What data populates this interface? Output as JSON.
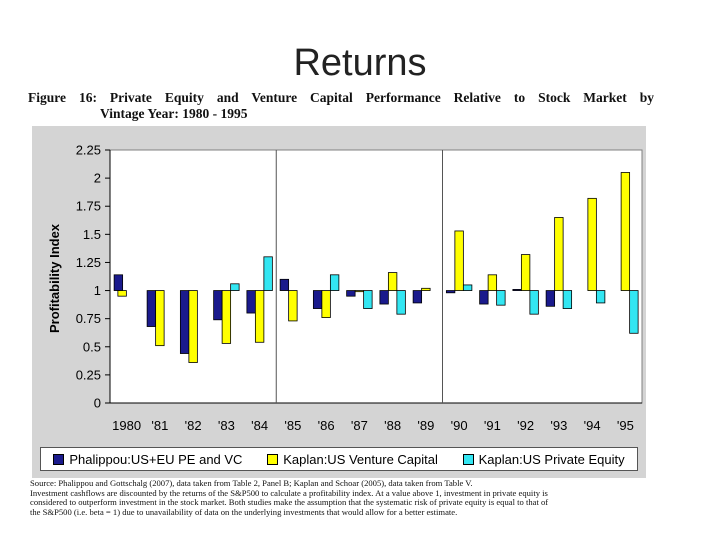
{
  "slide": {
    "title": "Returns"
  },
  "figure": {
    "caption_line1": "Figure 16: Private Equity and Venture Capital Performance Relative to Stock Market by",
    "caption_line2": "Vintage Year: 1980 - 1995"
  },
  "source": {
    "lines": [
      "Source: Phalippou and Gottschalg (2007), data taken from Table 2, Panel B; Kaplan and Schoar (2005), data taken from Table V.",
      "Investment cashflows are discounted by the returns of the S&P500 to calculate a profitability index. At a value above 1, investment in private equity is",
      "considered to outperform investment in the stock market. Both studies make the assumption that the systematic risk of private equity is equal to that of",
      "the S&P500 (i.e. beta = 1) due to unavailability of data on the underlying investments that would allow for a better estimate."
    ]
  },
  "colors": {
    "navy": "#1a1a8c",
    "yellow": "#ffff00",
    "cyan": "#33e6f2"
  },
  "chart_data": {
    "type": "bar",
    "ylabel": "Profitability Index",
    "xlabel": "",
    "ylim": [
      0,
      2.25
    ],
    "yticks": [
      0,
      0.25,
      0.5,
      0.75,
      1,
      1.25,
      1.5,
      1.75,
      2,
      2.25
    ],
    "ytick_labels": [
      "0",
      "0.25",
      "0.5",
      "0.75",
      "1",
      "1.25",
      "1.5",
      "1.75",
      "2",
      "2.25"
    ],
    "baseline": 1,
    "categories": [
      "1980",
      "'81",
      "'82",
      "'83",
      "'84",
      "'85",
      "'86",
      "'87",
      "'88",
      "'89",
      "'90",
      "'91",
      "'92",
      "'93",
      "'94",
      "'95"
    ],
    "separators_after": [
      "'84",
      "'89"
    ],
    "legend_position": "bottom",
    "series": [
      {
        "name": "Phalippou:US+EU PE and VC",
        "color": "#1a1a8c",
        "values": [
          1.14,
          0.68,
          0.44,
          0.74,
          0.8,
          1.1,
          0.84,
          0.95,
          0.88,
          0.89,
          0.98,
          0.88,
          1.01,
          0.86,
          null,
          null
        ]
      },
      {
        "name": "Kaplan:US Venture Capital",
        "color": "#ffff00",
        "values": [
          0.95,
          0.51,
          0.36,
          0.53,
          0.54,
          0.73,
          0.76,
          0.99,
          1.16,
          1.02,
          1.53,
          1.14,
          1.32,
          1.65,
          1.82,
          2.05
        ]
      },
      {
        "name": "Kaplan:US Private Equity",
        "color": "#33e6f2",
        "values": [
          null,
          null,
          null,
          1.06,
          1.3,
          null,
          1.14,
          0.84,
          0.79,
          null,
          1.05,
          0.87,
          0.79,
          0.84,
          0.89,
          0.62
        ]
      }
    ]
  }
}
